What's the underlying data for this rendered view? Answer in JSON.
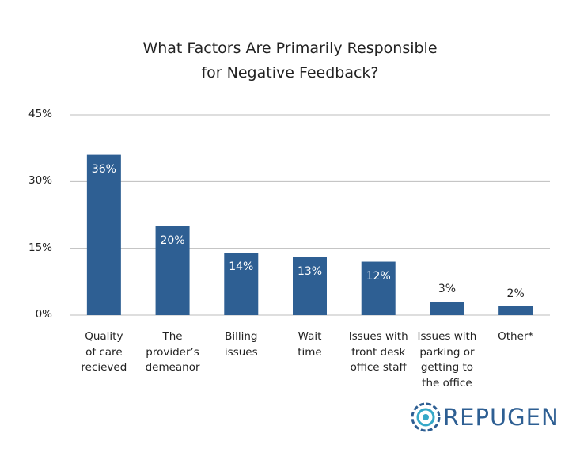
{
  "chart_data": {
    "type": "bar",
    "title": "What Factors Are Primarily Responsible\nfor Negative Feedback?",
    "categories": [
      "Quality\nof care\nrecieved",
      "The\nprovider’s\ndemeanor",
      "Billing\nissues",
      "Wait\ntime",
      "Issues with\nfront desk\noffice staff",
      "Issues with\nparking or\ngetting to\nthe office",
      "Other*"
    ],
    "values": [
      36,
      20,
      14,
      13,
      12,
      3,
      2
    ],
    "value_labels": [
      "36%",
      "20%",
      "14%",
      "13%",
      "12%",
      "3%",
      "2%"
    ],
    "color": "#2e5f93",
    "ylim": [
      0,
      45
    ],
    "yticks": [
      {
        "value": 0,
        "label": "0%"
      },
      {
        "value": 15,
        "label": "15%"
      },
      {
        "value": 30,
        "label": "30%"
      },
      {
        "value": 45,
        "label": "45%"
      }
    ],
    "grid": true
  },
  "logo": "REPUGEN"
}
